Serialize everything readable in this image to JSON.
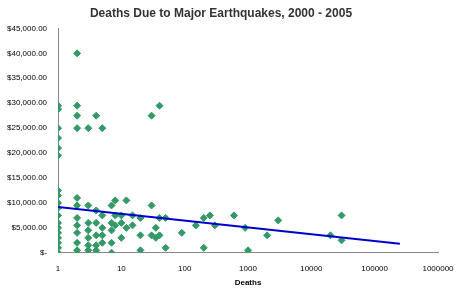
{
  "chart_data": {
    "type": "scatter",
    "title": "Deaths Due to Major Earthquakes, 2000 - 2005",
    "x_label": "Deaths",
    "log": "x",
    "grid": false,
    "xlim": [
      1,
      1000000
    ],
    "xticks": [
      1,
      10,
      100,
      1000,
      10000,
      100000,
      1000000
    ],
    "ylim": [
      0,
      45000
    ],
    "yticks": [
      {
        "value": 0,
        "label": "$-"
      },
      {
        "value": 5000,
        "label": "$5,000.00"
      },
      {
        "value": 10000,
        "label": "$10,000.00"
      },
      {
        "value": 15000,
        "label": "$15,000.00"
      },
      {
        "value": 20000,
        "label": "$20,000.00"
      },
      {
        "value": 25000,
        "label": "$25,000.00"
      },
      {
        "value": 30000,
        "label": "$30,000.00"
      },
      {
        "value": 35000,
        "label": "$35,000.00"
      },
      {
        "value": 40000,
        "label": "$40,000.00"
      },
      {
        "value": 45000,
        "label": "$45,000.00"
      }
    ],
    "series": [
      {
        "type": "scatter",
        "color": "#339966",
        "marker": "diamond",
        "x": [
          1,
          1,
          1,
          1,
          1,
          1,
          1,
          1,
          1,
          1,
          1,
          1,
          1,
          1,
          1,
          1,
          1,
          1,
          2,
          2,
          2,
          2,
          2,
          2,
          2,
          2,
          2,
          2,
          2,
          3,
          3,
          3,
          3,
          3,
          3,
          3,
          4,
          4,
          4,
          4,
          4,
          4,
          5,
          5,
          5,
          5,
          5,
          7,
          7,
          7,
          7,
          7,
          8,
          8,
          8,
          10,
          10,
          10,
          12,
          12,
          15,
          15,
          20,
          20,
          20,
          30,
          30,
          30,
          35,
          35,
          40,
          40,
          40,
          50,
          50,
          90,
          150,
          200,
          200,
          250,
          300,
          600,
          900,
          1000,
          2000,
          3000,
          20000,
          30000,
          30000
        ],
        "values": [
          29500,
          28800,
          25000,
          23000,
          21000,
          19500,
          12500,
          11500,
          10000,
          9000,
          7500,
          6000,
          5000,
          4000,
          3000,
          2000,
          1000,
          0,
          40000,
          29500,
          27500,
          25000,
          11000,
          9500,
          7000,
          5500,
          4000,
          2000,
          500,
          25000,
          9500,
          6000,
          4500,
          3000,
          1500,
          500,
          27500,
          8500,
          6000,
          3500,
          1500,
          500,
          25000,
          7500,
          5000,
          3500,
          2000,
          9500,
          6000,
          4500,
          2000,
          0,
          10500,
          7500,
          5500,
          7500,
          6000,
          3000,
          10500,
          5000,
          5500,
          7500,
          7000,
          3500,
          500,
          27500,
          9500,
          3500,
          3000,
          5000,
          29500,
          7000,
          3500,
          7000,
          1000,
          4000,
          5500,
          7000,
          1000,
          7500,
          5500,
          7500,
          5000,
          500,
          3500,
          6500,
          3500,
          2500,
          7500
        ]
      },
      {
        "type": "line",
        "color": "#0000cc",
        "line_style": "solid",
        "x": [
          1,
          250000
        ],
        "values": [
          9200,
          1800
        ]
      }
    ]
  }
}
